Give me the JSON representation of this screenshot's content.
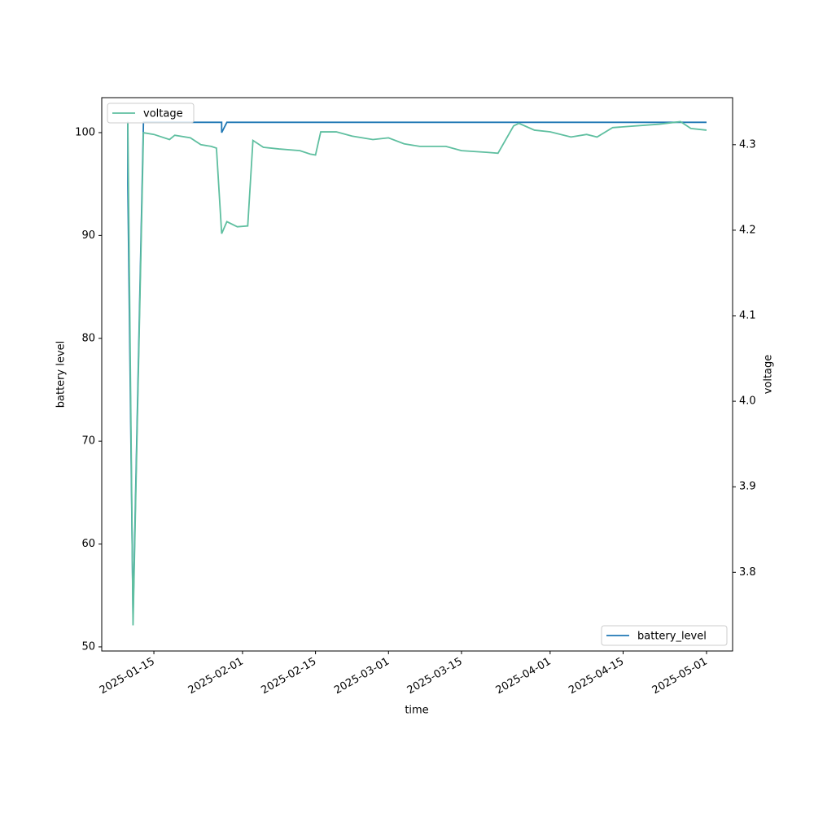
{
  "chart_data": {
    "type": "line",
    "xlabel": "time",
    "ylabel": "battery level",
    "y2label": "voltage",
    "xlim": [
      "2025-01-05",
      "2025-05-06"
    ],
    "xticks": [
      "2025-01-15",
      "2025-02-01",
      "2025-02-15",
      "2025-03-01",
      "2025-03-15",
      "2025-04-01",
      "2025-04-15",
      "2025-05-01"
    ],
    "ylim": [
      49.6,
      103.4
    ],
    "yticks": [
      50,
      60,
      70,
      80,
      90,
      100
    ],
    "y2lim": [
      3.708,
      4.355
    ],
    "y2ticks": [
      3.8,
      3.9,
      {
        "value": 4,
        "label": "4.0"
      },
      4.1,
      4.2,
      4.3
    ],
    "series": [
      {
        "name": "battery_level",
        "color": "#1f77b4",
        "axis": "y",
        "legend": "lower right",
        "x": [
          "2025-01-10",
          "2025-01-10",
          "2025-01-11",
          "2025-01-13",
          "2025-01-28",
          "2025-01-28",
          "2025-01-29",
          "2025-05-01"
        ],
        "values": [
          101,
          95,
          53,
          101,
          101,
          100,
          101,
          101
        ]
      },
      {
        "name": "voltage",
        "color": "#5fbfa0",
        "axis": "y2",
        "legend": "upper left",
        "x": [
          "2025-01-10",
          "2025-01-11",
          "2025-01-13",
          "2025-01-15",
          "2025-01-18",
          "2025-01-19",
          "2025-01-22",
          "2025-01-24",
          "2025-01-26",
          "2025-01-27",
          "2025-01-28",
          "2025-01-29",
          "2025-01-31",
          "2025-02-02",
          "2025-02-03",
          "2025-02-05",
          "2025-02-08",
          "2025-02-12",
          "2025-02-14",
          "2025-02-15",
          "2025-02-16",
          "2025-02-19",
          "2025-02-22",
          "2025-02-26",
          "2025-03-01",
          "2025-03-04",
          "2025-03-07",
          "2025-03-12",
          "2025-03-15",
          "2025-03-20",
          "2025-03-22",
          "2025-03-25",
          "2025-03-26",
          "2025-03-29",
          "2025-04-01",
          "2025-04-05",
          "2025-04-08",
          "2025-04-10",
          "2025-04-13",
          "2025-04-22",
          "2025-04-26",
          "2025-04-28",
          "2025-05-01"
        ],
        "values": [
          4.327,
          3.738,
          4.314,
          4.312,
          4.306,
          4.311,
          4.308,
          4.3,
          4.298,
          4.296,
          4.196,
          4.21,
          4.204,
          4.205,
          4.305,
          4.297,
          4.295,
          4.293,
          4.289,
          4.288,
          4.315,
          4.315,
          4.31,
          4.306,
          4.308,
          4.301,
          4.298,
          4.298,
          4.293,
          4.291,
          4.29,
          4.322,
          4.325,
          4.317,
          4.315,
          4.309,
          4.312,
          4.309,
          4.32,
          4.324,
          4.327,
          4.319,
          4.317
        ]
      }
    ]
  }
}
